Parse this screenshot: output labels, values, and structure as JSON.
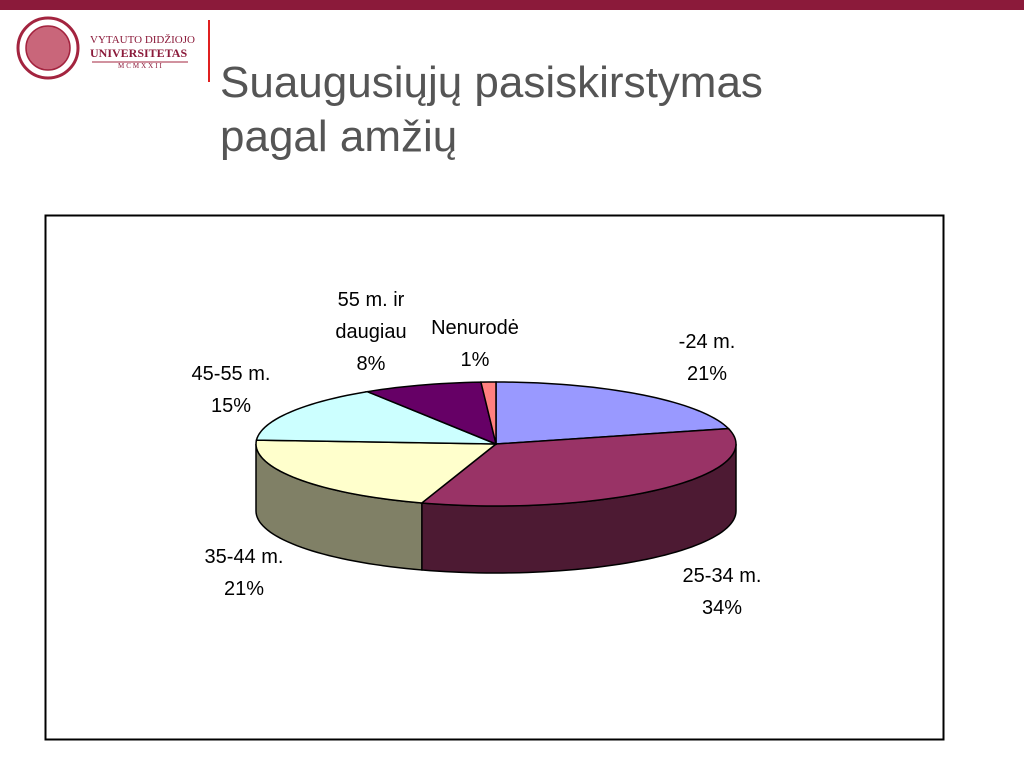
{
  "header": {
    "logo_lines": [
      "VYTAUTO DIDŽIOJO",
      "UNIVERSITETAS",
      "MCMXXII"
    ]
  },
  "chart_data": {
    "type": "pie",
    "title": "Suaugusiųjų pasiskirstymas pagal amžių",
    "categories": [
      "-24 m.",
      "25-34 m.",
      "35-44 m.",
      "45-55 m.",
      "55 m. ir daugiau",
      "Nenurodė"
    ],
    "values": [
      21,
      34,
      21,
      15,
      8,
      1
    ],
    "value_labels": [
      "21%",
      "34%",
      "21%",
      "15%",
      "8%",
      "1%"
    ],
    "colors": [
      "#9999ff",
      "#993366",
      "#ffffcc",
      "#ccffff",
      "#660066",
      "#ff8080"
    ]
  }
}
